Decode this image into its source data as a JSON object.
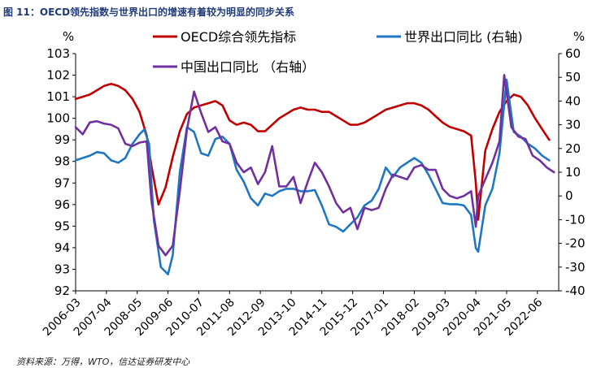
{
  "figure": {
    "title": "图 11：OECD领先指数与世界出口的增速有着较为明显的同步关系",
    "source": "资料来源：万得，WTO，信达证券研发中心"
  },
  "chart_data": {
    "type": "line",
    "left_axis": {
      "unit": "%",
      "min": 92,
      "max": 103,
      "ticks": [
        92,
        93,
        94,
        95,
        96,
        97,
        98,
        99,
        100,
        101,
        102,
        103
      ]
    },
    "right_axis": {
      "unit": "%",
      "min": -40,
      "max": 60,
      "ticks": [
        -40,
        -30,
        -20,
        -10,
        0,
        10,
        20,
        30,
        40,
        50,
        60
      ]
    },
    "x_axis": {
      "start": "2006-03",
      "end": "2023-03",
      "tick_labels": [
        "2006-03",
        "2007-04",
        "2008-05",
        "2009-06",
        "2010-07",
        "2011-08",
        "2012-09",
        "2013-10",
        "2014-11",
        "2015-12",
        "2017-01",
        "2018-02",
        "2019-03",
        "2020-04",
        "2021-05",
        "2022-06"
      ]
    },
    "legend": [
      "OECD综合领先指标",
      "世界出口同比 (右轴)",
      "中国出口同比 （右轴）"
    ],
    "colors": {
      "oecd": "#c00000",
      "world": "#1f77c4",
      "china": "#7030a0"
    },
    "series": [
      {
        "name": "OECD综合领先指标",
        "axis": "left",
        "points": [
          [
            "2006-03",
            100.9
          ],
          [
            "2006-06",
            101.0
          ],
          [
            "2006-09",
            101.1
          ],
          [
            "2006-12",
            101.3
          ],
          [
            "2007-03",
            101.5
          ],
          [
            "2007-06",
            101.6
          ],
          [
            "2007-09",
            101.5
          ],
          [
            "2007-12",
            101.3
          ],
          [
            "2008-03",
            100.9
          ],
          [
            "2008-06",
            100.3
          ],
          [
            "2008-09",
            99.2
          ],
          [
            "2008-11",
            97.8
          ],
          [
            "2009-02",
            96.0
          ],
          [
            "2009-05",
            96.8
          ],
          [
            "2009-08",
            98.2
          ],
          [
            "2009-11",
            99.4
          ],
          [
            "2010-02",
            100.2
          ],
          [
            "2010-05",
            100.5
          ],
          [
            "2010-08",
            100.6
          ],
          [
            "2010-11",
            100.7
          ],
          [
            "2011-02",
            100.8
          ],
          [
            "2011-05",
            100.6
          ],
          [
            "2011-08",
            99.9
          ],
          [
            "2011-11",
            99.7
          ],
          [
            "2012-02",
            99.8
          ],
          [
            "2012-05",
            99.7
          ],
          [
            "2012-08",
            99.4
          ],
          [
            "2012-11",
            99.4
          ],
          [
            "2013-02",
            99.7
          ],
          [
            "2013-05",
            100.0
          ],
          [
            "2013-08",
            100.2
          ],
          [
            "2013-11",
            100.4
          ],
          [
            "2014-02",
            100.5
          ],
          [
            "2014-05",
            100.4
          ],
          [
            "2014-08",
            100.4
          ],
          [
            "2014-11",
            100.3
          ],
          [
            "2015-02",
            100.3
          ],
          [
            "2015-05",
            100.1
          ],
          [
            "2015-08",
            99.9
          ],
          [
            "2015-11",
            99.7
          ],
          [
            "2016-02",
            99.7
          ],
          [
            "2016-05",
            99.8
          ],
          [
            "2016-08",
            100.0
          ],
          [
            "2016-11",
            100.2
          ],
          [
            "2017-02",
            100.4
          ],
          [
            "2017-05",
            100.5
          ],
          [
            "2017-08",
            100.6
          ],
          [
            "2017-11",
            100.7
          ],
          [
            "2018-02",
            100.7
          ],
          [
            "2018-05",
            100.6
          ],
          [
            "2018-08",
            100.4
          ],
          [
            "2018-11",
            100.1
          ],
          [
            "2019-02",
            99.8
          ],
          [
            "2019-05",
            99.6
          ],
          [
            "2019-08",
            99.5
          ],
          [
            "2019-11",
            99.4
          ],
          [
            "2020-02",
            99.2
          ],
          [
            "2020-04",
            97.0
          ],
          [
            "2020-05",
            95.3
          ],
          [
            "2020-08",
            98.5
          ],
          [
            "2020-11",
            99.5
          ],
          [
            "2021-02",
            100.3
          ],
          [
            "2021-05",
            100.8
          ],
          [
            "2021-08",
            101.1
          ],
          [
            "2021-11",
            101.0
          ],
          [
            "2022-02",
            100.6
          ],
          [
            "2022-05",
            100.0
          ],
          [
            "2022-08",
            99.5
          ],
          [
            "2022-11",
            99.0
          ]
        ]
      },
      {
        "name": "世界出口同比 (右轴)",
        "axis": "right",
        "points": [
          [
            "2006-03",
            15.0
          ],
          [
            "2006-06",
            16.0
          ],
          [
            "2006-09",
            17.0
          ],
          [
            "2006-12",
            18.5
          ],
          [
            "2007-03",
            18.0
          ],
          [
            "2007-06",
            15.0
          ],
          [
            "2007-09",
            14.0
          ],
          [
            "2007-12",
            16.0
          ],
          [
            "2008-03",
            22.0
          ],
          [
            "2008-06",
            26.0
          ],
          [
            "2008-08",
            28.0
          ],
          [
            "2008-10",
            22.0
          ],
          [
            "2008-12",
            -10.0
          ],
          [
            "2009-03",
            -30.0
          ],
          [
            "2009-06",
            -33.0
          ],
          [
            "2009-08",
            -25.0
          ],
          [
            "2009-11",
            10.0
          ],
          [
            "2010-02",
            29.0
          ],
          [
            "2010-05",
            27.0
          ],
          [
            "2010-08",
            18.0
          ],
          [
            "2010-11",
            17.0
          ],
          [
            "2011-02",
            24.0
          ],
          [
            "2011-05",
            25.0
          ],
          [
            "2011-08",
            22.0
          ],
          [
            "2011-11",
            11.0
          ],
          [
            "2012-02",
            6.0
          ],
          [
            "2012-05",
            -1.0
          ],
          [
            "2012-08",
            -4.0
          ],
          [
            "2012-11",
            1.0
          ],
          [
            "2013-02",
            0.0
          ],
          [
            "2013-05",
            2.0
          ],
          [
            "2013-08",
            3.0
          ],
          [
            "2013-11",
            3.0
          ],
          [
            "2014-02",
            2.0
          ],
          [
            "2014-05",
            2.0
          ],
          [
            "2014-08",
            2.5
          ],
          [
            "2014-11",
            -4.0
          ],
          [
            "2015-02",
            -12.0
          ],
          [
            "2015-05",
            -13.0
          ],
          [
            "2015-08",
            -15.0
          ],
          [
            "2015-11",
            -12.0
          ],
          [
            "2016-02",
            -9.0
          ],
          [
            "2016-05",
            -4.0
          ],
          [
            "2016-08",
            -2.0
          ],
          [
            "2016-11",
            3.0
          ],
          [
            "2017-02",
            12.0
          ],
          [
            "2017-05",
            8.0
          ],
          [
            "2017-08",
            12.0
          ],
          [
            "2017-11",
            14.0
          ],
          [
            "2018-02",
            16.0
          ],
          [
            "2018-05",
            14.0
          ],
          [
            "2018-08",
            9.0
          ],
          [
            "2018-11",
            3.0
          ],
          [
            "2019-02",
            -3.0
          ],
          [
            "2019-05",
            -3.5
          ],
          [
            "2019-08",
            -3.5
          ],
          [
            "2019-11",
            -4.0
          ],
          [
            "2020-02",
            -8.0
          ],
          [
            "2020-04",
            -22.0
          ],
          [
            "2020-05",
            -23.5
          ],
          [
            "2020-08",
            -4.0
          ],
          [
            "2020-11",
            3.0
          ],
          [
            "2021-02",
            18.0
          ],
          [
            "2021-05",
            49.0
          ],
          [
            "2021-08",
            27.0
          ],
          [
            "2021-11",
            25.0
          ],
          [
            "2022-02",
            22.0
          ],
          [
            "2022-05",
            20.0
          ],
          [
            "2022-08",
            17.0
          ],
          [
            "2022-11",
            15.0
          ]
        ]
      },
      {
        "name": "中国出口同比 （右轴）",
        "axis": "right",
        "points": [
          [
            "2006-03",
            29.0
          ],
          [
            "2006-06",
            26.0
          ],
          [
            "2006-09",
            31.0
          ],
          [
            "2006-12",
            31.5
          ],
          [
            "2007-03",
            30.5
          ],
          [
            "2007-06",
            30.0
          ],
          [
            "2007-09",
            28.5
          ],
          [
            "2007-12",
            22.0
          ],
          [
            "2008-03",
            21.0
          ],
          [
            "2008-06",
            22.5
          ],
          [
            "2008-09",
            23.0
          ],
          [
            "2008-11",
            -2.0
          ],
          [
            "2009-02",
            -21.0
          ],
          [
            "2009-05",
            -25.0
          ],
          [
            "2009-08",
            -21.0
          ],
          [
            "2009-11",
            2.0
          ],
          [
            "2010-02",
            28.0
          ],
          [
            "2010-05",
            44.0
          ],
          [
            "2010-08",
            35.0
          ],
          [
            "2010-11",
            27.0
          ],
          [
            "2011-02",
            29.0
          ],
          [
            "2011-05",
            23.0
          ],
          [
            "2011-08",
            22.0
          ],
          [
            "2011-11",
            14.0
          ],
          [
            "2012-02",
            10.0
          ],
          [
            "2012-05",
            12.0
          ],
          [
            "2012-08",
            5.0
          ],
          [
            "2012-11",
            10.0
          ],
          [
            "2013-02",
            21.0
          ],
          [
            "2013-05",
            4.0
          ],
          [
            "2013-08",
            4.0
          ],
          [
            "2013-11",
            8.0
          ],
          [
            "2014-02",
            -3.0
          ],
          [
            "2014-05",
            6.0
          ],
          [
            "2014-08",
            14.0
          ],
          [
            "2014-11",
            10.0
          ],
          [
            "2015-02",
            4.0
          ],
          [
            "2015-05",
            -3.0
          ],
          [
            "2015-08",
            -7.0
          ],
          [
            "2015-11",
            -5.0
          ],
          [
            "2016-02",
            -14.0
          ],
          [
            "2016-05",
            -5.0
          ],
          [
            "2016-08",
            -6.0
          ],
          [
            "2016-11",
            -5.0
          ],
          [
            "2017-02",
            3.0
          ],
          [
            "2017-05",
            9.0
          ],
          [
            "2017-08",
            8.0
          ],
          [
            "2017-11",
            7.0
          ],
          [
            "2018-02",
            12.0
          ],
          [
            "2018-05",
            13.0
          ],
          [
            "2018-08",
            11.0
          ],
          [
            "2018-11",
            11.0
          ],
          [
            "2019-02",
            3.0
          ],
          [
            "2019-05",
            0.0
          ],
          [
            "2019-08",
            -1.0
          ],
          [
            "2019-11",
            0.0
          ],
          [
            "2020-02",
            2.0
          ],
          [
            "2020-04",
            -13.0
          ],
          [
            "2020-05",
            0.0
          ],
          [
            "2020-08",
            7.0
          ],
          [
            "2020-11",
            14.0
          ],
          [
            "2021-02",
            23.0
          ],
          [
            "2021-04",
            51.0
          ],
          [
            "2021-07",
            29.0
          ],
          [
            "2021-10",
            25.0
          ],
          [
            "2022-01",
            24.0
          ],
          [
            "2022-04",
            17.0
          ],
          [
            "2022-07",
            15.0
          ],
          [
            "2022-10",
            12.0
          ],
          [
            "2023-01",
            10.0
          ]
        ]
      }
    ]
  }
}
